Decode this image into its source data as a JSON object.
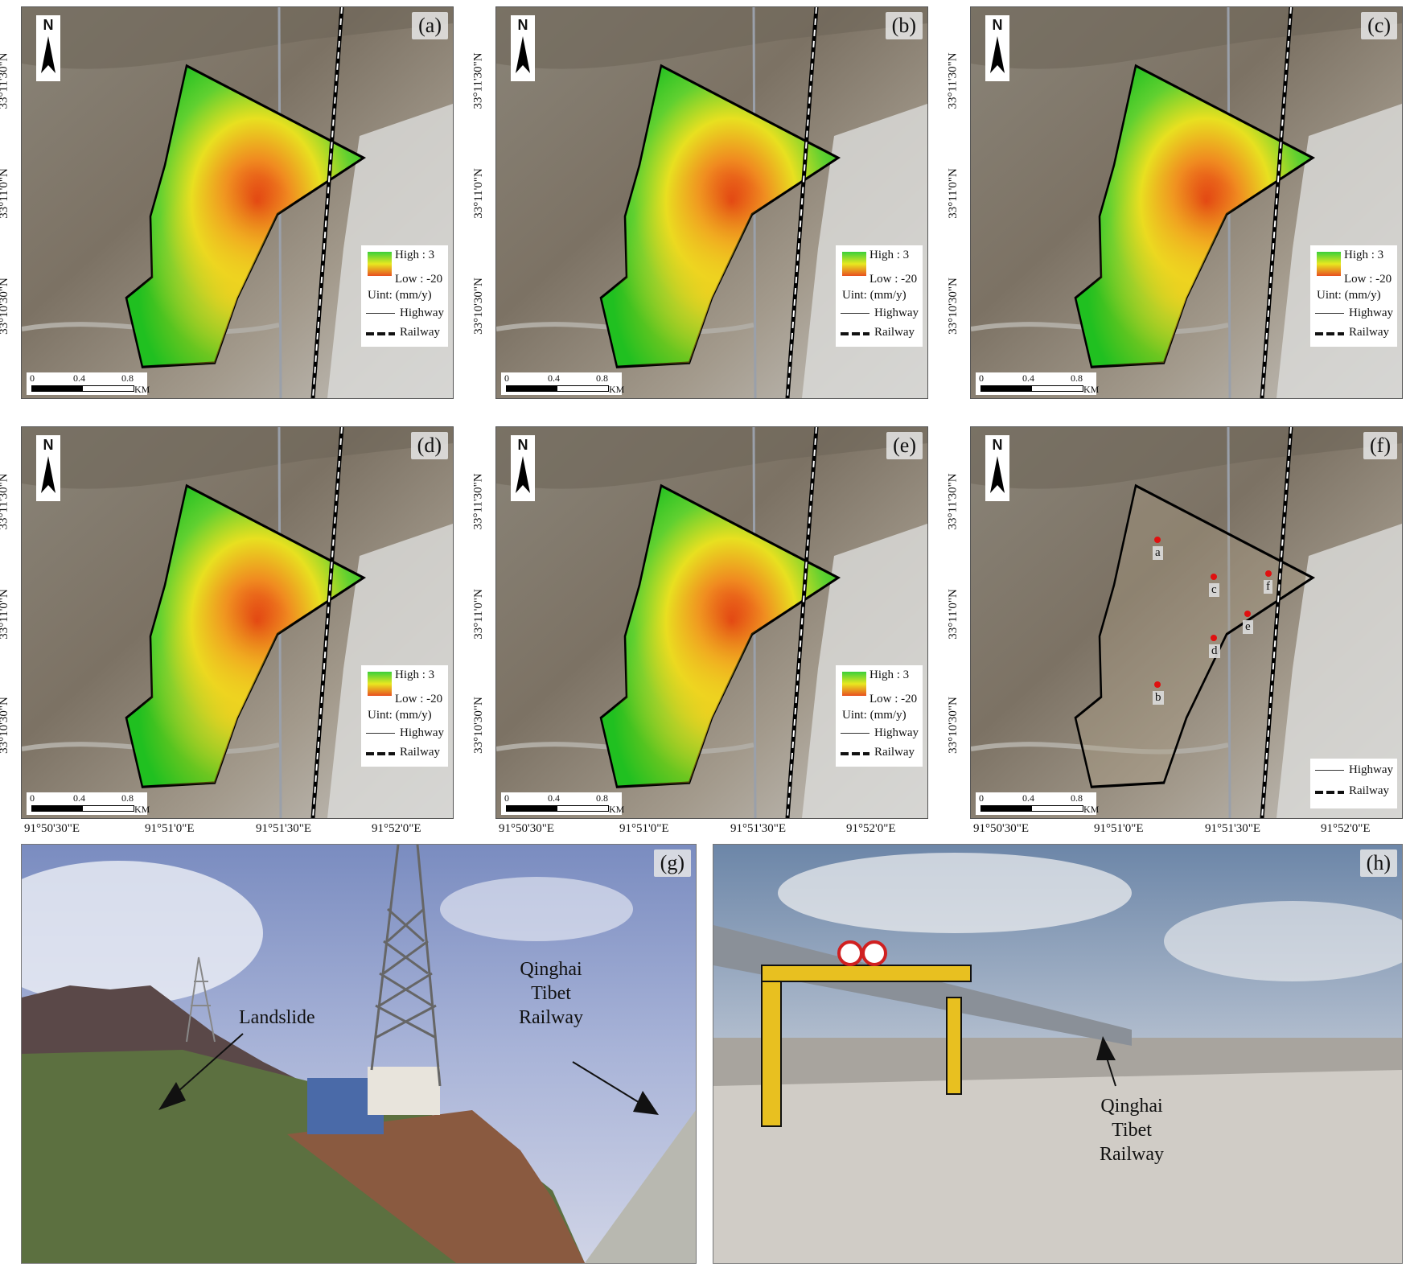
{
  "panels": [
    {
      "label": "(a)"
    },
    {
      "label": "(b)"
    },
    {
      "label": "(c)"
    },
    {
      "label": "(d)"
    },
    {
      "label": "(e)"
    },
    {
      "label": "(f)"
    }
  ],
  "north": "N",
  "legend": {
    "high": "High : 3",
    "low": "Low : -20",
    "unit": "Uint:  (mm/y)",
    "highway": "Highway",
    "railway": "Railway",
    "colors": {
      "high": "#3ad03a",
      "mid": "#e8e820",
      "low": "#e85020"
    }
  },
  "scale": {
    "t0": "0",
    "t1": "0.4",
    "t2": "0.8",
    "unit": "KM"
  },
  "lat_ticks": [
    "33°11'30\"N",
    "33°11'0\"N",
    "33°10'30\"N"
  ],
  "lon_ticks": [
    "91°50'30\"E",
    "91°51'0\"E",
    "91°51'30\"E",
    "91°52'0\"E"
  ],
  "points": [
    {
      "id": "a"
    },
    {
      "id": "c"
    },
    {
      "id": "f"
    },
    {
      "id": "e"
    },
    {
      "id": "d"
    },
    {
      "id": "b"
    }
  ],
  "photos": {
    "g": {
      "label": "(g)",
      "ann1": "Landslide",
      "ann2a": "Qinghai",
      "ann2b": "Tibet",
      "ann2c": "Railway"
    },
    "h": {
      "label": "(h)",
      "ann1a": "Qinghai",
      "ann1b": "Tibet",
      "ann1c": "Railway"
    }
  }
}
